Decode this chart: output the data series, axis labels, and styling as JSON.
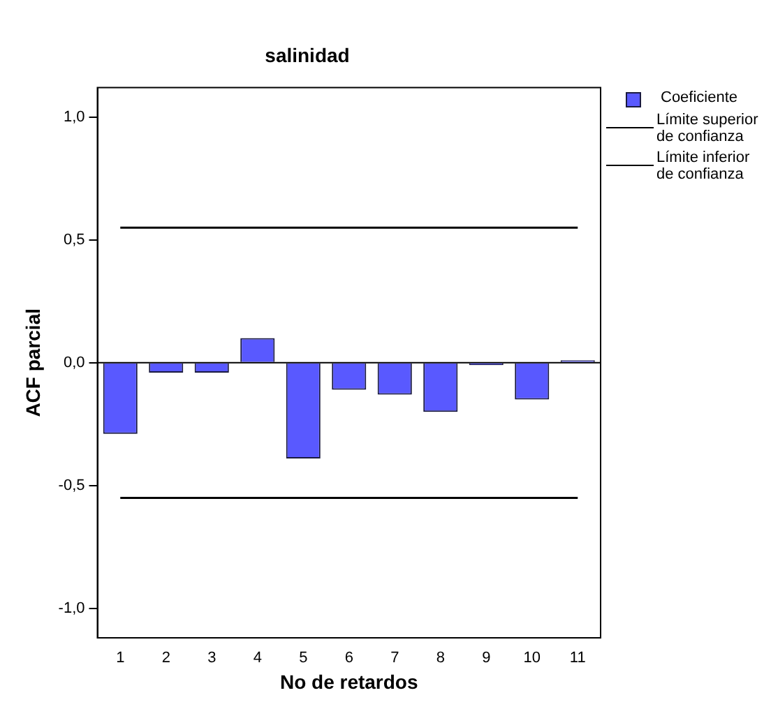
{
  "chart_data": {
    "type": "bar",
    "title": "salinidad",
    "xlabel": "No de retardos",
    "ylabel": "ACF parcial",
    "categories": [
      "1",
      "2",
      "3",
      "4",
      "5",
      "6",
      "7",
      "8",
      "9",
      "10",
      "11"
    ],
    "series": [
      {
        "name": "Coeficiente",
        "color": "#5959ff",
        "values": [
          -0.29,
          -0.04,
          -0.04,
          0.1,
          -0.39,
          -0.11,
          -0.13,
          -0.2,
          -0.01,
          -0.15,
          0.01
        ]
      },
      {
        "name": "Límite superior de confianza",
        "type": "line",
        "color": "#000000",
        "values": [
          0.55,
          0.55,
          0.55,
          0.55,
          0.55,
          0.55,
          0.55,
          0.55,
          0.55,
          0.55,
          0.55
        ]
      },
      {
        "name": "Límite inferior de confianza",
        "type": "line",
        "color": "#000000",
        "values": [
          -0.55,
          -0.55,
          -0.55,
          -0.55,
          -0.55,
          -0.55,
          -0.55,
          -0.55,
          -0.55,
          -0.55,
          -0.55
        ]
      }
    ],
    "ylim": [
      -1.12,
      1.12
    ],
    "yticks": [
      {
        "value": -1,
        "label": "-1,0"
      },
      {
        "value": -0.5,
        "label": "-0,5"
      },
      {
        "value": 0,
        "label": "0,0"
      },
      {
        "value": 0.5,
        "label": "0,5"
      },
      {
        "value": 1,
        "label": "1,0"
      }
    ],
    "ref_lines": [
      {
        "axis": "y",
        "value": 0,
        "color": "#000000"
      }
    ],
    "grid": false,
    "legend": "top right",
    "marker": "none",
    "line_style": "solid"
  }
}
